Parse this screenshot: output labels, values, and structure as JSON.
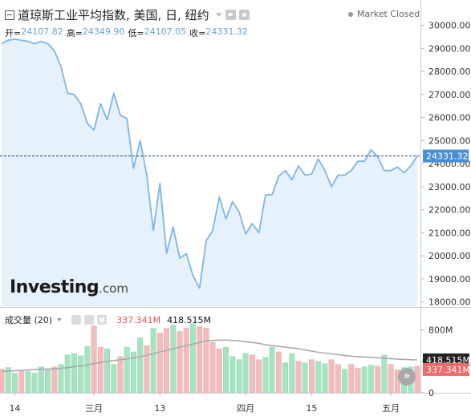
{
  "header": {
    "title": "道琼斯工业平均指数, 美国, 日, 纽约",
    "market_status": "Market Closed",
    "ohlc": [
      {
        "label": "开=",
        "value": "24107.82"
      },
      {
        "label": "高=",
        "value": "24349.90"
      },
      {
        "label": "低=",
        "value": "24107.05"
      },
      {
        "label": "收=",
        "value": "24331.32"
      }
    ]
  },
  "watermark": {
    "brand": "Investing",
    "tld": ".com"
  },
  "price_axis": {
    "ticks": [
      "30000.00",
      "29000.00",
      "28000.00",
      "27000.00",
      "26000.00",
      "25000.00",
      "24000.00",
      "23000.00",
      "22000.00",
      "21000.00",
      "20000.00",
      "19000.00",
      "18000.00"
    ],
    "current_price_label": "24331.32"
  },
  "volume_panel": {
    "name": "成交量 (20)",
    "value_red": "337.341M",
    "value_dark": "418.515M",
    "axis_ticks": [
      "800M",
      "400M",
      "0"
    ],
    "ma_label": "418.515M",
    "current_label": "337.341M"
  },
  "time_axis": {
    "labels": [
      "14",
      "三月",
      "13",
      "四月",
      "15",
      "五月"
    ]
  },
  "colors": {
    "line": "#7db5e6",
    "area": "#e5f1fb",
    "up_bar": "#a5e3c1",
    "down_bar": "#f3bcbc",
    "ma_line": "#aaaaaa",
    "dark_badge": "#222222",
    "price_badge": "#4a8fd6",
    "red_badge": "#ef6a6a"
  },
  "chart_data": {
    "type": "area",
    "title": "道琼斯工业平均指数, 美国, 日, 纽约",
    "ylim": [
      17400,
      30400
    ],
    "x_labels": [
      "14",
      "三月",
      "13",
      "四月",
      "15",
      "五月"
    ],
    "close": [
      29200,
      29350,
      29400,
      29350,
      29300,
      29200,
      29300,
      29200,
      28900,
      28200,
      27050,
      27000,
      26600,
      25750,
      25450,
      26600,
      25900,
      27050,
      26100,
      25950,
      23800,
      25000,
      23500,
      21100,
      23150,
      20100,
      21250,
      19900,
      20100,
      19150,
      18600,
      20650,
      21100,
      22550,
      21600,
      22350,
      21900,
      20950,
      21400,
      21000,
      22650,
      22650,
      23450,
      23700,
      23300,
      23900,
      23500,
      23550,
      24200,
      23700,
      23000,
      23500,
      23500,
      23700,
      24100,
      24100,
      24600,
      24300,
      23700,
      23700,
      23850,
      23600,
      23900,
      24331.32
    ],
    "volume": [
      {
        "v": 300,
        "up": false
      },
      {
        "v": 320,
        "up": true
      },
      {
        "v": 250,
        "up": true
      },
      {
        "v": 290,
        "up": false
      },
      {
        "v": 270,
        "up": true
      },
      {
        "v": 250,
        "up": true
      },
      {
        "v": 330,
        "up": true
      },
      {
        "v": 290,
        "up": true
      },
      {
        "v": 330,
        "up": false
      },
      {
        "v": 360,
        "up": true
      },
      {
        "v": 480,
        "up": true
      },
      {
        "v": 500,
        "up": true
      },
      {
        "v": 470,
        "up": true
      },
      {
        "v": 590,
        "up": true
      },
      {
        "v": 850,
        "up": false
      },
      {
        "v": 580,
        "up": false
      },
      {
        "v": 560,
        "up": true
      },
      {
        "v": 360,
        "up": true
      },
      {
        "v": 460,
        "up": false
      },
      {
        "v": 580,
        "up": true
      },
      {
        "v": 520,
        "up": true
      },
      {
        "v": 700,
        "up": true
      },
      {
        "v": 600,
        "up": false
      },
      {
        "v": 820,
        "up": true
      },
      {
        "v": 760,
        "up": false
      },
      {
        "v": 820,
        "up": false
      },
      {
        "v": 860,
        "up": true
      },
      {
        "v": 780,
        "up": false
      },
      {
        "v": 820,
        "up": false
      },
      {
        "v": 880,
        "up": true
      },
      {
        "v": 840,
        "up": false
      },
      {
        "v": 820,
        "up": false
      },
      {
        "v": 640,
        "up": false
      },
      {
        "v": 560,
        "up": false
      },
      {
        "v": 580,
        "up": true
      },
      {
        "v": 460,
        "up": true
      },
      {
        "v": 420,
        "up": true
      },
      {
        "v": 500,
        "up": true
      },
      {
        "v": 480,
        "up": false
      },
      {
        "v": 420,
        "up": false
      },
      {
        "v": 450,
        "up": true
      },
      {
        "v": 580,
        "up": true
      },
      {
        "v": 520,
        "up": false
      },
      {
        "v": 380,
        "up": true
      },
      {
        "v": 500,
        "up": true
      },
      {
        "v": 400,
        "up": false
      },
      {
        "v": 380,
        "up": true
      },
      {
        "v": 420,
        "up": false
      },
      {
        "v": 400,
        "up": true
      },
      {
        "v": 370,
        "up": true
      },
      {
        "v": 420,
        "up": false
      },
      {
        "v": 360,
        "up": false
      },
      {
        "v": 300,
        "up": true
      },
      {
        "v": 360,
        "up": false
      },
      {
        "v": 310,
        "up": false
      },
      {
        "v": 330,
        "up": true
      },
      {
        "v": 350,
        "up": true
      },
      {
        "v": 340,
        "up": false
      },
      {
        "v": 480,
        "up": true
      },
      {
        "v": 360,
        "up": false
      },
      {
        "v": 290,
        "up": false
      },
      {
        "v": 320,
        "up": true
      },
      {
        "v": 330,
        "up": true
      },
      {
        "v": 337.341,
        "up": false
      }
    ],
    "volume_ma": [
      270,
      275,
      280,
      285,
      290,
      295,
      300,
      300,
      305,
      310,
      320,
      330,
      340,
      355,
      370,
      385,
      400,
      410,
      420,
      430,
      445,
      460,
      475,
      500,
      520,
      540,
      560,
      580,
      600,
      620,
      640,
      660,
      665,
      670,
      670,
      665,
      660,
      650,
      640,
      630,
      610,
      600,
      590,
      580,
      570,
      560,
      545,
      530,
      515,
      505,
      495,
      485,
      475,
      465,
      460,
      455,
      450,
      445,
      440,
      435,
      430,
      425,
      420,
      418.515
    ],
    "volume_ylim": [
      0,
      1000
    ]
  }
}
